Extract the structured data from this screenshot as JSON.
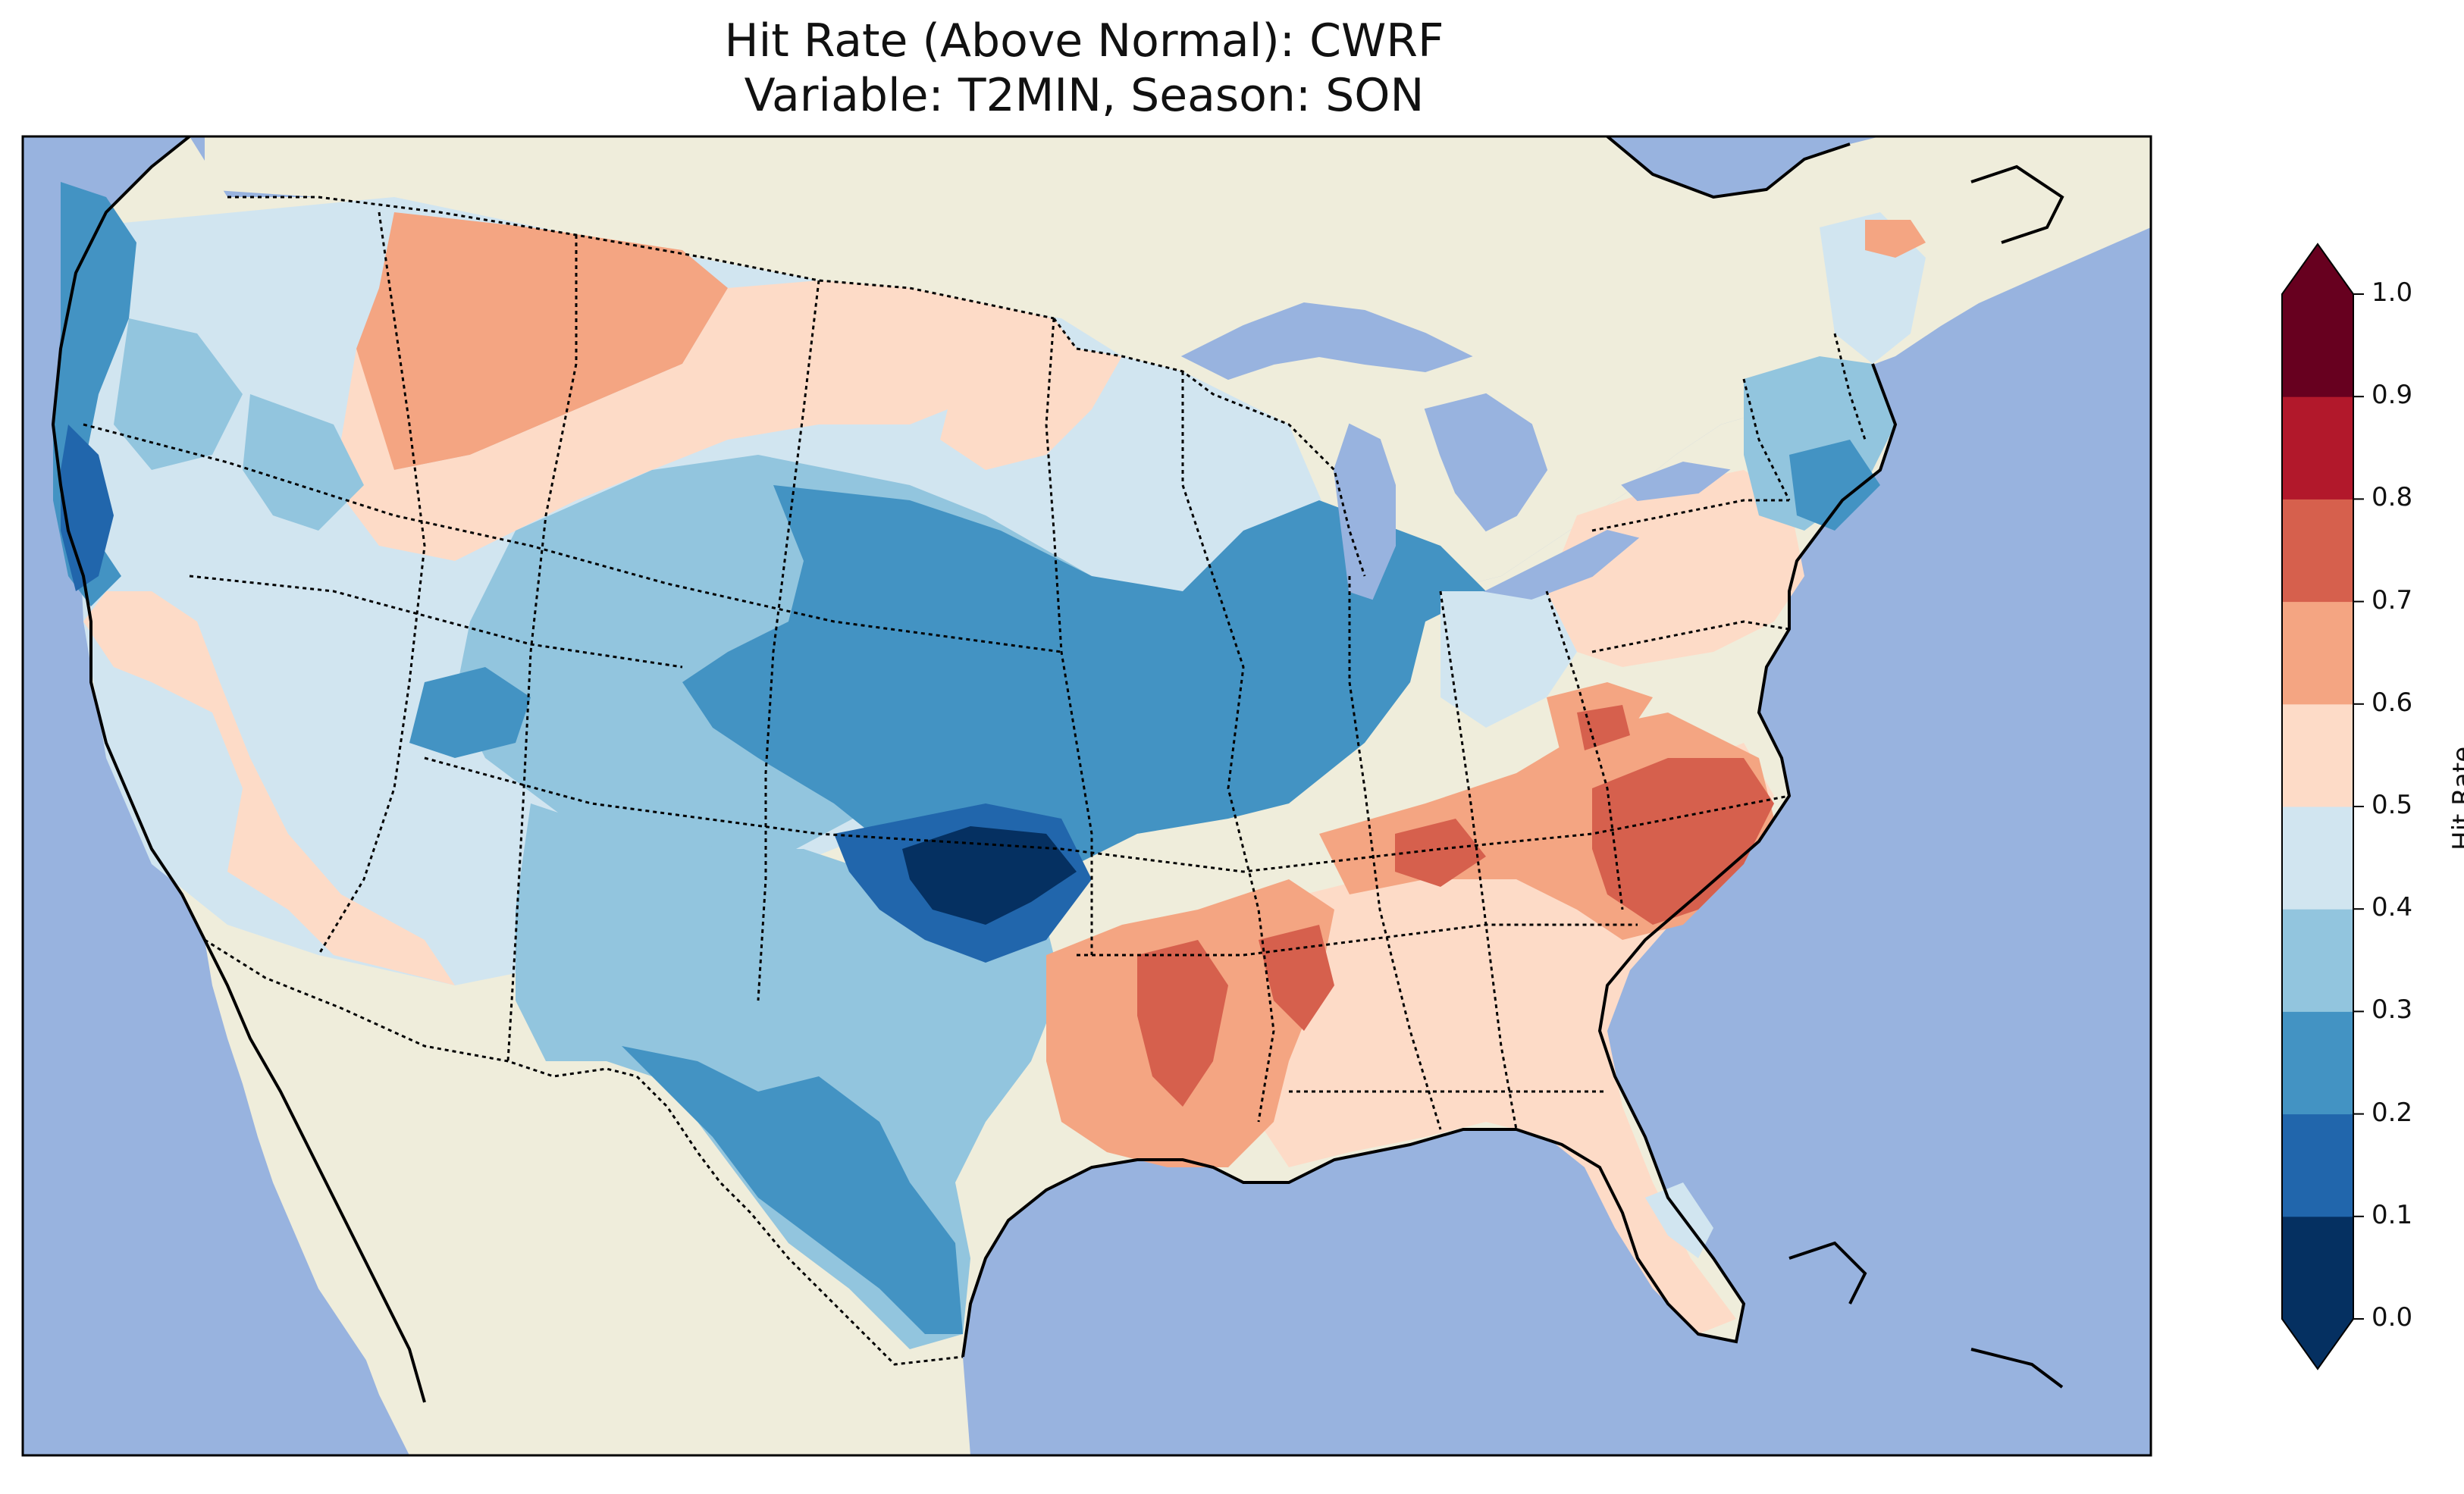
{
  "title": {
    "line1": "Hit Rate (Above Normal): CWRF",
    "line2": "Variable: T2MIN, Season: SON"
  },
  "colors": {
    "ocean": "#98b3df",
    "land": "#efeddb",
    "scale": [
      "#053061",
      "#2166ac",
      "#4393c3",
      "#92c5de",
      "#d1e5f0",
      "#fddbc7",
      "#f4a582",
      "#d6604d",
      "#b2182b",
      "#67001f"
    ]
  },
  "colorbar": {
    "label": "Hit Rate",
    "ticks": [
      "0.0",
      "0.1",
      "0.2",
      "0.3",
      "0.4",
      "0.5",
      "0.6",
      "0.7",
      "0.8",
      "0.9",
      "1.0"
    ],
    "min": 0.0,
    "max": 1.0,
    "extend": "both"
  },
  "map": {
    "projection": "conus-lambert",
    "region": "Contiguous United States",
    "features": [
      "coastlines",
      "state borders",
      "country borders",
      "great lakes"
    ]
  }
}
